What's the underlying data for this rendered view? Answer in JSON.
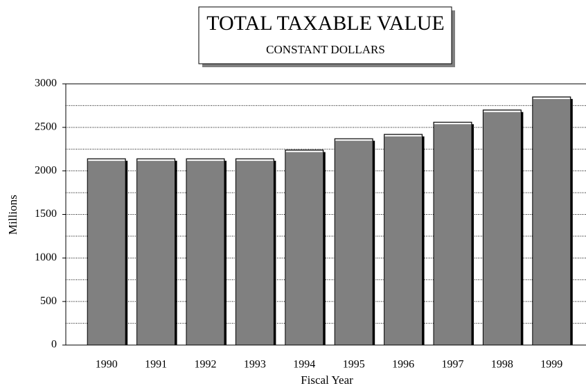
{
  "chart_data": {
    "type": "bar",
    "title": "TOTAL TAXABLE VALUE",
    "subtitle": "CONSTANT DOLLARS",
    "x_label": "Fiscal Year",
    "y_label": "Millions",
    "categories": [
      "1990",
      "1991",
      "1992",
      "1993",
      "1994",
      "1995",
      "1996",
      "1997",
      "1998",
      "1999"
    ],
    "values": [
      2140,
      2140,
      2140,
      2140,
      2240,
      2370,
      2420,
      2560,
      2700,
      2850
    ],
    "color": "#808080",
    "ylim": [
      0,
      3000
    ],
    "yticks": [
      0,
      500,
      1000,
      1500,
      2000,
      2500,
      3000
    ],
    "minor_yticks": [
      250,
      750,
      1250,
      1750,
      2250,
      2750
    ],
    "grid": true
  }
}
